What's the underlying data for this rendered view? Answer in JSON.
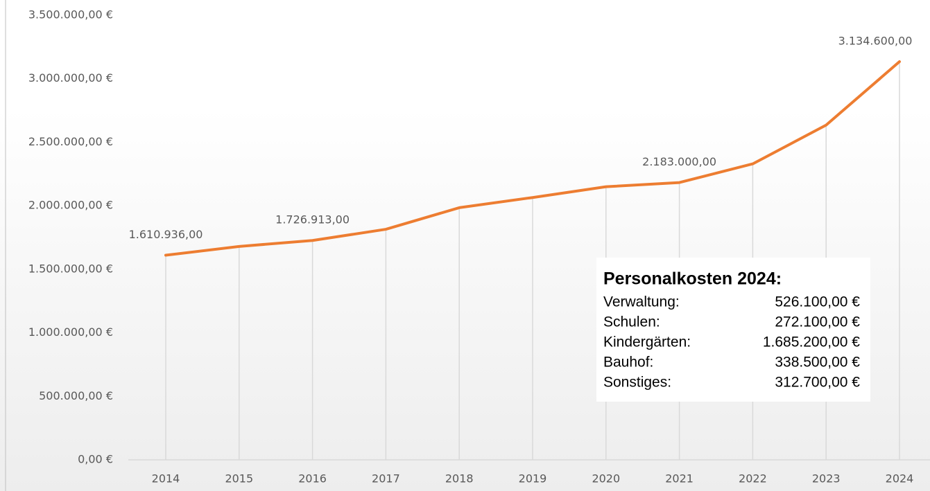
{
  "chart_data": {
    "type": "line",
    "categories": [
      "2014",
      "2015",
      "2016",
      "2017",
      "2018",
      "2019",
      "2020",
      "2021",
      "2022",
      "2023",
      "2024"
    ],
    "series": [
      {
        "name": "Personalkosten",
        "color": "#ed7d31",
        "values": [
          1610936,
          1680000,
          1726913,
          1815000,
          1985000,
          2065000,
          2150000,
          2183000,
          2330000,
          2635000,
          3134600
        ],
        "value_labels": [
          "1.610.936,00",
          null,
          "1.726.913,00",
          null,
          null,
          null,
          null,
          "2.183.000,00",
          null,
          null,
          "3.134.600,00"
        ]
      }
    ],
    "ylim": [
      0,
      3500000
    ],
    "yticks": [
      {
        "value": 0,
        "label": "0,00 €"
      },
      {
        "value": 500000,
        "label": "500.000,00 €"
      },
      {
        "value": 1000000,
        "label": "1.000.000,00 €"
      },
      {
        "value": 1500000,
        "label": "1.500.000,00 €"
      },
      {
        "value": 2000000,
        "label": "2.000.000,00 €"
      },
      {
        "value": 2500000,
        "label": "2.500.000,00 €"
      },
      {
        "value": 3000000,
        "label": "3.000.000,00 €"
      },
      {
        "value": 3500000,
        "label": "3.500.000,00 €"
      }
    ],
    "drop_lines": true,
    "annotation": {
      "title": "Personalkosten 2024:",
      "rows": [
        [
          "Verwaltung:",
          "526.100,00 €"
        ],
        [
          "Schulen:",
          "272.100,00 €"
        ],
        [
          "Kindergärten:",
          "1.685.200,00 €"
        ],
        [
          "Bauhof:",
          "338.500,00 €"
        ],
        [
          "Sonstiges:",
          "312.700,00 €"
        ]
      ]
    }
  }
}
